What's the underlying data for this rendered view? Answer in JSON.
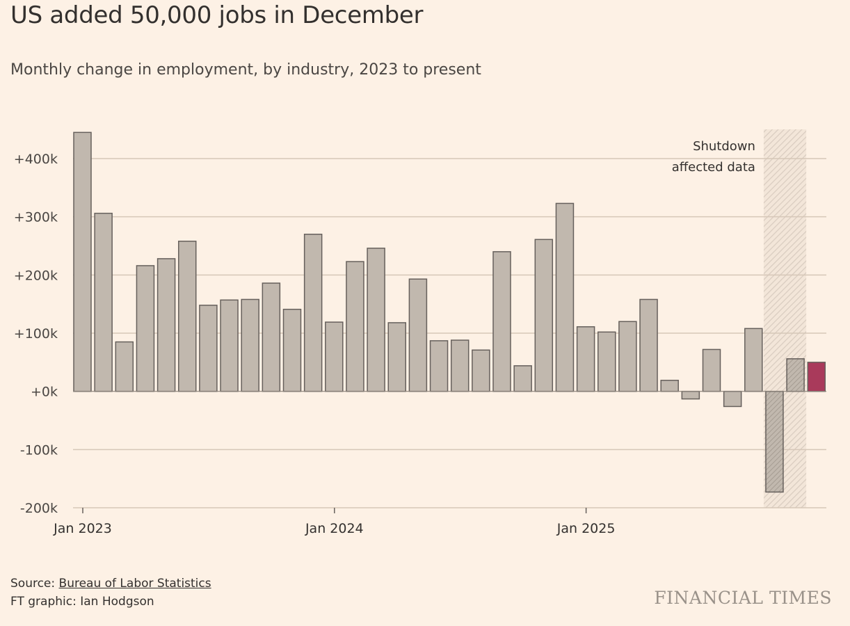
{
  "header": {
    "title": "US added 50,000 jobs in December",
    "subtitle": "Monthly change in employment, by industry, 2023 to present"
  },
  "footer": {
    "source_prefix": "Source: ",
    "source_link": "Bureau of Labor Statistics",
    "credit": "FT graphic: Ian Hodgson",
    "logo": "FINANCIAL TIMES"
  },
  "colors": {
    "background": "#fdf1e5",
    "bar": "#c1b8ae",
    "bar_stroke": "#66605c",
    "highlight": "#a93a5b",
    "grid": "#d6c7b8",
    "shade": "#d9ccc0"
  },
  "chart_data": {
    "type": "bar",
    "title": "US added 50,000 jobs in December",
    "subtitle": "Monthly change in employment, by industry, 2023 to present",
    "xlabel": "",
    "ylabel": "",
    "ylim": [
      -200000,
      450000
    ],
    "yticks": [
      {
        "value": 400000,
        "label": "+400k"
      },
      {
        "value": 300000,
        "label": "+300k"
      },
      {
        "value": 200000,
        "label": "+200k"
      },
      {
        "value": 100000,
        "label": "+100k"
      },
      {
        "value": 0,
        "label": "+0k"
      },
      {
        "value": -100000,
        "label": "-100k"
      },
      {
        "value": -200000,
        "label": "-200k"
      }
    ],
    "xticks": [
      {
        "index": 0,
        "label": "Jan 2023"
      },
      {
        "index": 12,
        "label": "Jan 2024"
      },
      {
        "index": 24,
        "label": "Jan 2025"
      }
    ],
    "grid": true,
    "categories": [
      "Jan 2023",
      "Feb 2023",
      "Mar 2023",
      "Apr 2023",
      "May 2023",
      "Jun 2023",
      "Jul 2023",
      "Aug 2023",
      "Sep 2023",
      "Oct 2023",
      "Nov 2023",
      "Dec 2023",
      "Jan 2024",
      "Feb 2024",
      "Mar 2024",
      "Apr 2024",
      "May 2024",
      "Jun 2024",
      "Jul 2024",
      "Aug 2024",
      "Sep 2024",
      "Oct 2024",
      "Nov 2024",
      "Dec 2024",
      "Jan 2025",
      "Feb 2025",
      "Mar 2025",
      "Apr 2025",
      "May 2025",
      "Jun 2025",
      "Jul 2025",
      "Aug 2025",
      "Sep 2025",
      "Oct 2025",
      "Nov 2025",
      "Dec 2025"
    ],
    "values": [
      445000,
      306000,
      85000,
      216000,
      228000,
      258000,
      148000,
      157000,
      158000,
      186000,
      141000,
      270000,
      119000,
      223000,
      246000,
      118000,
      193000,
      87000,
      88000,
      71000,
      240000,
      44000,
      261000,
      323000,
      111000,
      102000,
      120000,
      158000,
      19000,
      -13000,
      72000,
      -26000,
      108000,
      -173000,
      56000,
      50000
    ],
    "shutdown_affected_indices": [
      33,
      34
    ],
    "highlight_index": 35,
    "annotation": {
      "lines": [
        "Shutdown",
        "affected data"
      ]
    }
  }
}
